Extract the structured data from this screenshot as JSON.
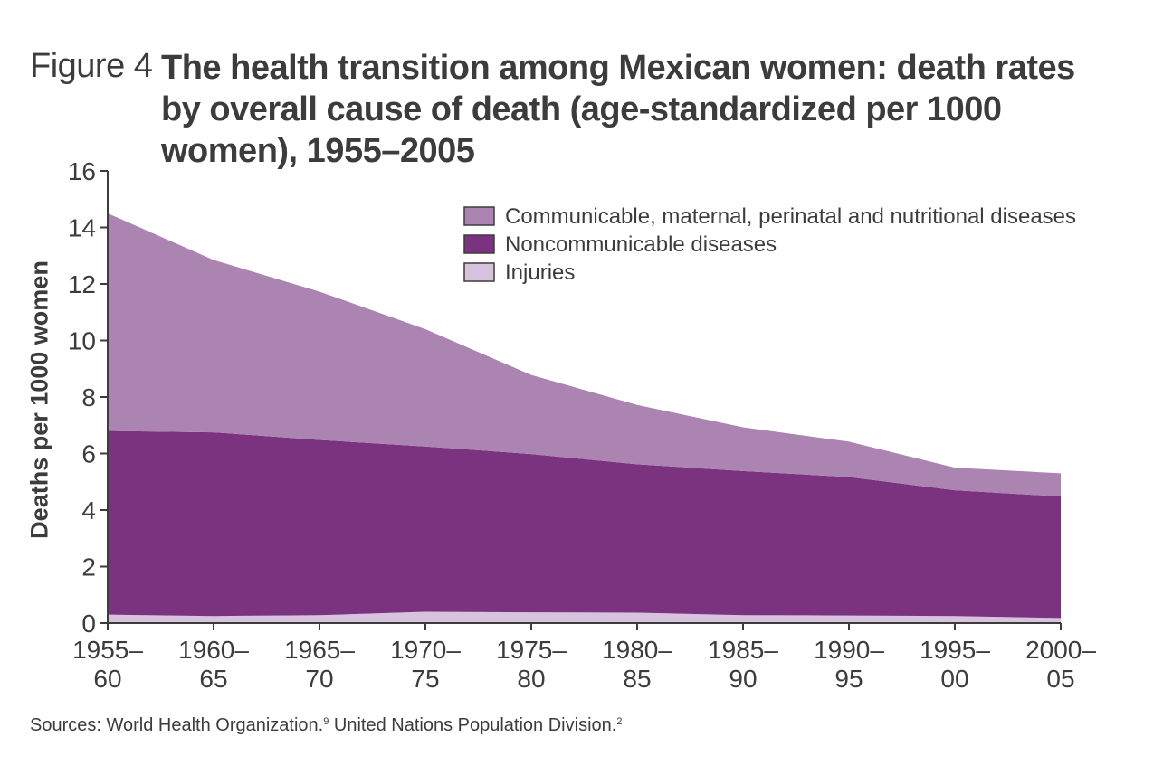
{
  "figure": {
    "label": "Figure 4",
    "title": "The health transition among Mexican women: death rates by overall cause of death (age-standardized per 1000 women), 1955–2005"
  },
  "footer": {
    "text_a": "Sources: World Health Organization.",
    "ref_a": "9",
    "text_b": " United Nations Population Division.",
    "ref_b": "2"
  },
  "chart_data": {
    "type": "area",
    "stacked": true,
    "categories": [
      "1955–60",
      "1960–65",
      "1965–70",
      "1970–75",
      "1975–80",
      "1980–85",
      "1985–90",
      "1990–95",
      "1995–00",
      "2000–05"
    ],
    "category_lines": [
      [
        "1955–",
        "60"
      ],
      [
        "1960–",
        "65"
      ],
      [
        "1965–",
        "70"
      ],
      [
        "1970–",
        "75"
      ],
      [
        "1975–",
        "80"
      ],
      [
        "1980–",
        "85"
      ],
      [
        "1985–",
        "90"
      ],
      [
        "1990–",
        "95"
      ],
      [
        "1995–",
        "00"
      ],
      [
        "2000–",
        "05"
      ]
    ],
    "ylabel": "Deaths per 1000 women",
    "ylim": [
      0,
      16
    ],
    "yticks": [
      0,
      2,
      4,
      6,
      8,
      10,
      12,
      14,
      16
    ],
    "grid": false,
    "legend_position": "top-right",
    "series": [
      {
        "name": "Injuries",
        "color": "#d7c3dd",
        "values": [
          0.3,
          0.25,
          0.28,
          0.4,
          0.38,
          0.37,
          0.28,
          0.27,
          0.25,
          0.18
        ]
      },
      {
        "name": "Noncommunicable diseases",
        "color": "#7b3380",
        "values": [
          6.5,
          6.5,
          6.2,
          5.85,
          5.6,
          5.25,
          5.1,
          4.9,
          4.45,
          4.3
        ]
      },
      {
        "name": "Communicable, maternal, perinatal and nutritional diseases",
        "color": "#ab84b2",
        "values": [
          7.7,
          6.1,
          5.25,
          4.15,
          2.8,
          2.1,
          1.55,
          1.25,
          0.8,
          0.82
        ]
      }
    ],
    "legend_order": [
      "Communicable, maternal, perinatal and nutritional diseases",
      "Noncommunicable diseases",
      "Injuries"
    ]
  }
}
